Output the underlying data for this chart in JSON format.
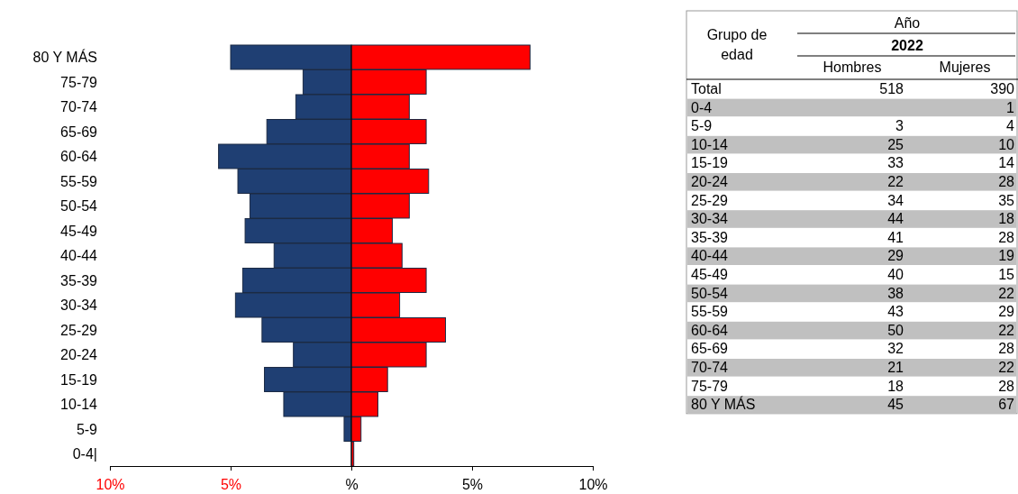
{
  "chart_data": [
    {
      "type": "bar",
      "orientation": "horizontal",
      "stacked": true,
      "categories": [
        "80 Y MÁS",
        "75-79",
        "70-74",
        "65-69",
        "60-64",
        "55-59",
        "50-54",
        "45-49",
        "40-44",
        "35-39",
        "30-34",
        "25-29",
        "20-24",
        "15-19",
        "10-14",
        "5-9",
        "0-4|"
      ],
      "series": [
        {
          "color": "#1f3f73",
          "values": [
            -5.0,
            -2.0,
            -2.3,
            -3.5,
            -5.5,
            -4.7,
            -4.2,
            -4.4,
            -3.2,
            -4.5,
            -4.8,
            -3.7,
            -2.4,
            -3.6,
            -2.8,
            -0.3,
            0
          ]
        },
        {
          "color": "#ff0000",
          "values": [
            7.4,
            3.1,
            2.4,
            3.1,
            2.4,
            3.2,
            2.4,
            1.7,
            2.1,
            3.1,
            2.0,
            3.9,
            3.1,
            1.5,
            1.1,
            0.4,
            0.1
          ]
        }
      ],
      "xlim": [
        -10,
        10
      ],
      "xticks": [
        {
          "value": -10,
          "label": "10%"
        },
        {
          "value": -5,
          "label": "5%"
        },
        {
          "value": 0,
          "label": "%"
        },
        {
          "value": 5,
          "label": "5%"
        },
        {
          "value": 10,
          "label": "10%"
        }
      ],
      "legend": false
    },
    {
      "type": "heatmap",
      "title": "Año",
      "subtitle": "2022",
      "ylabel": "Grupo de edad",
      "categories": [
        "Hombres",
        "Mujeres"
      ],
      "y_categories": [
        "Total",
        "0-4",
        "5-9",
        "10-14",
        "15-19",
        "20-24",
        "25-29",
        "30-34",
        "35-39",
        "40-44",
        "45-49",
        "50-54",
        "55-59",
        "60-64",
        "65-69",
        "70-74",
        "75-79",
        "80 Y MÁS"
      ],
      "cells": [
        [
          518,
          390
        ],
        [
          null,
          1
        ],
        [
          3,
          4
        ],
        [
          25,
          10
        ],
        [
          33,
          14
        ],
        [
          22,
          28
        ],
        [
          34,
          35
        ],
        [
          44,
          18
        ],
        [
          41,
          28
        ],
        [
          29,
          19
        ],
        [
          40,
          15
        ],
        [
          38,
          22
        ],
        [
          43,
          29
        ],
        [
          50,
          22
        ],
        [
          32,
          28
        ],
        [
          21,
          22
        ],
        [
          18,
          28
        ],
        [
          45,
          67
        ]
      ],
      "data_labels": true
    }
  ]
}
